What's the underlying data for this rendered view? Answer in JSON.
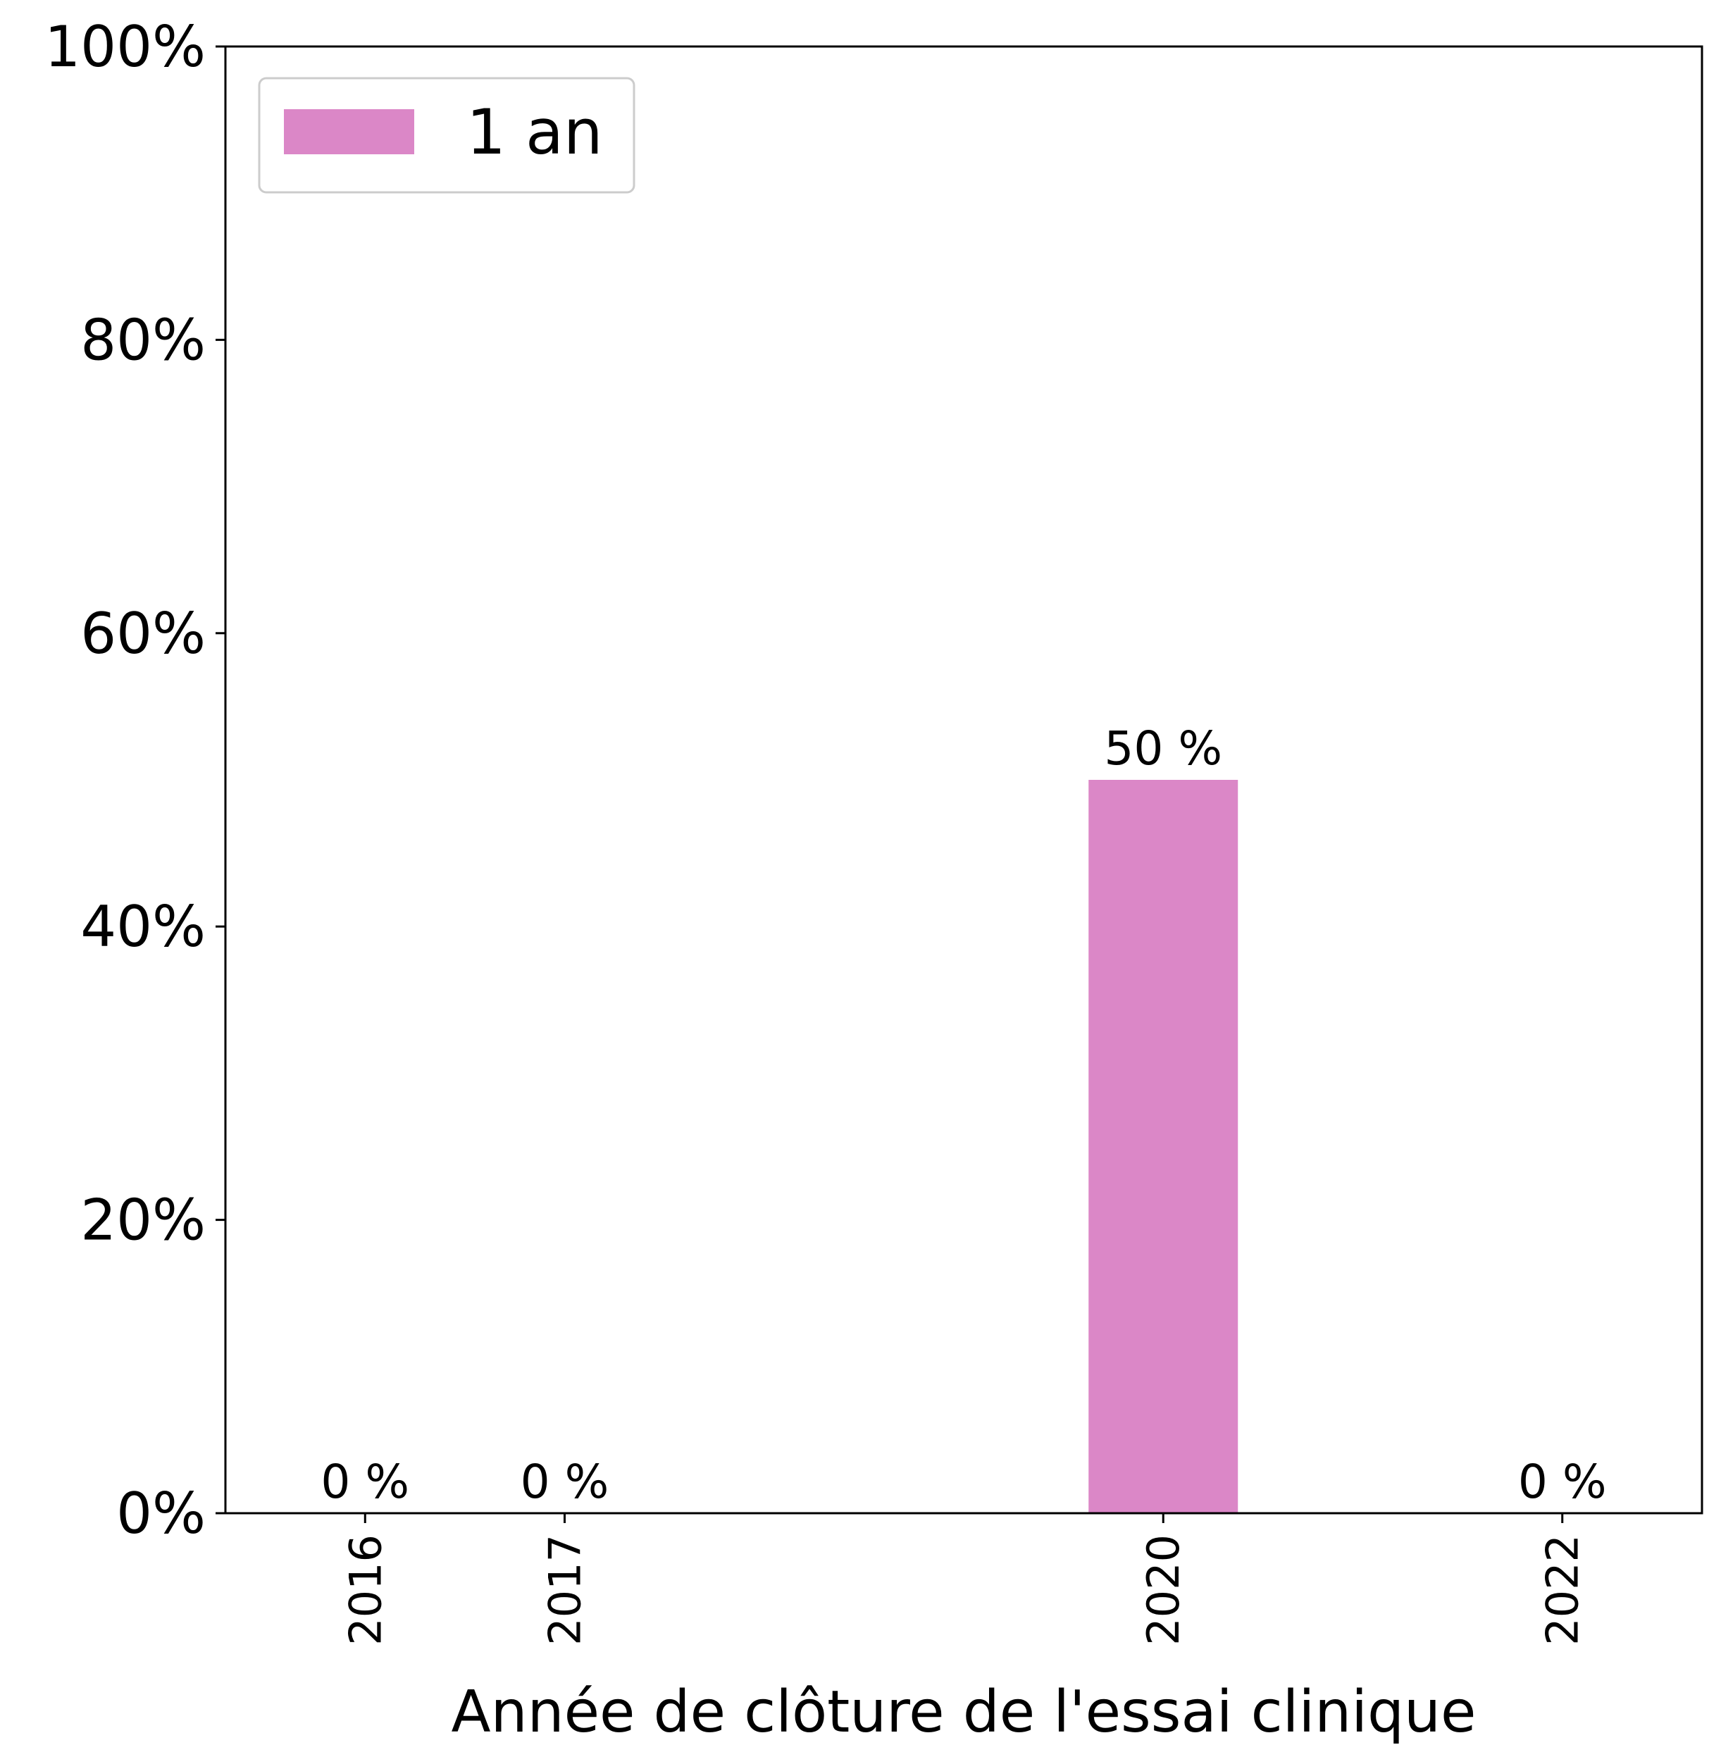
{
  "chart_data": {
    "type": "bar",
    "xlabel": "Année de clôture de l'essai clinique",
    "ylabel": "",
    "x": [
      2016,
      2017,
      2020,
      2022
    ],
    "x_tick_labels": [
      "2016",
      "2017",
      "2020",
      "2022"
    ],
    "xlim": [
      2015.3,
      2022.7
    ],
    "ylim": [
      0,
      100
    ],
    "y_tick_values": [
      0,
      20,
      40,
      60,
      80,
      100
    ],
    "y_tick_labels": [
      "0%",
      "20%",
      "40%",
      "60%",
      "80%",
      "100%"
    ],
    "series": [
      {
        "name": "1 an",
        "color": "#db87c7",
        "values": [
          0,
          0,
          50,
          0
        ],
        "labels": [
          "0 %",
          "0 %",
          "50 %",
          "0 %"
        ]
      }
    ],
    "legend_position": "top-left",
    "grid": false
  }
}
